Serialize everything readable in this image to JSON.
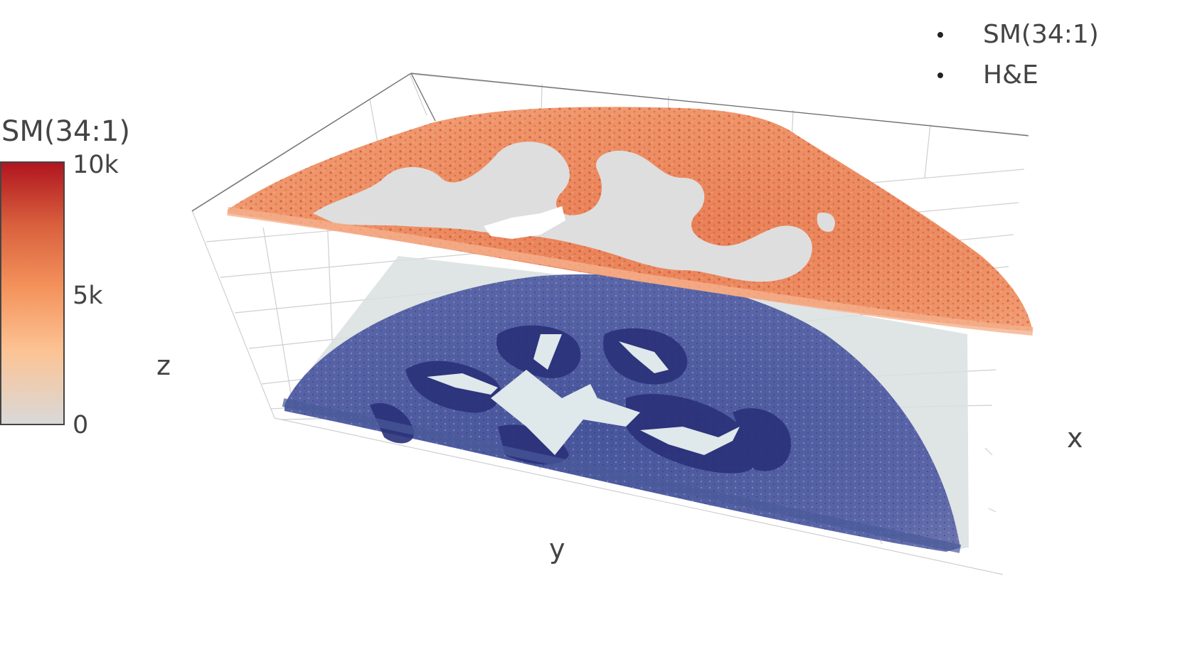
{
  "chart_data": {
    "type": "surface3d",
    "title": "",
    "axes": {
      "x": {
        "label": "x"
      },
      "y": {
        "label": "y"
      },
      "z": {
        "label": "z"
      }
    },
    "grid": true,
    "legend_position": "top-right",
    "series": [
      {
        "name": "SM(34:1)",
        "kind": "ion-intensity-map",
        "layer": "top",
        "colorscale": "OrRd"
      },
      {
        "name": "H&E",
        "kind": "histology-image",
        "layer": "bottom"
      }
    ],
    "colorbar": {
      "title": "SM(34:1)",
      "min": 0,
      "max": 10000,
      "ticks": [
        {
          "value": 10000,
          "label": "10k"
        },
        {
          "value": 5000,
          "label": "5k"
        },
        {
          "value": 0,
          "label": "0"
        }
      ],
      "colors": [
        "#d9d9d9",
        "#fcc394",
        "#f4935c",
        "#d9603d",
        "#b0151f"
      ]
    }
  }
}
